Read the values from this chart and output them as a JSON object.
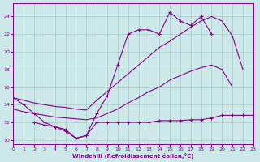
{
  "background_color": "#cce8e8",
  "grid_color": "#aacccc",
  "line_color": "#880088",
  "xlim": [
    0,
    23
  ],
  "ylim": [
    9.5,
    25.5
  ],
  "yticks": [
    10,
    12,
    14,
    16,
    18,
    20,
    22,
    24
  ],
  "xticks": [
    0,
    1,
    2,
    3,
    4,
    5,
    6,
    7,
    8,
    9,
    10,
    11,
    12,
    13,
    14,
    15,
    16,
    17,
    18,
    19,
    20,
    21,
    22,
    23
  ],
  "xlabel": "Windchill (Refroidissement éolien,°C)",
  "series": [
    {
      "name": "jagged_top",
      "x": [
        0,
        1,
        2,
        3,
        4,
        5,
        6,
        7,
        8,
        9,
        10,
        11,
        12,
        13,
        14,
        15,
        16,
        17,
        18,
        19
      ],
      "y": [
        14.8,
        14.0,
        13.0,
        12.0,
        11.5,
        11.0,
        10.2,
        10.5,
        13.0,
        15.0,
        18.5,
        22.0,
        22.5,
        22.5,
        22.0,
        24.5,
        23.5,
        23.0,
        24.0,
        22.0
      ],
      "marker": true
    },
    {
      "name": "upper_diagonal",
      "x": [
        0,
        1,
        2,
        3,
        4,
        5,
        6,
        7,
        8,
        9,
        10,
        11,
        12,
        13,
        14,
        15,
        16,
        17,
        18,
        19,
        20,
        21,
        22,
        23
      ],
      "y": [
        14.8,
        14.5,
        14.2,
        14.0,
        13.8,
        13.7,
        13.5,
        13.4,
        14.5,
        15.5,
        16.5,
        17.5,
        18.5,
        19.5,
        20.5,
        21.2,
        22.0,
        22.8,
        23.5,
        24.0,
        23.5,
        21.8,
        18.0,
        null
      ],
      "marker": false
    },
    {
      "name": "lower_diagonal",
      "x": [
        0,
        1,
        2,
        3,
        4,
        5,
        6,
        7,
        8,
        9,
        10,
        11,
        12,
        13,
        14,
        15,
        16,
        17,
        18,
        19,
        20,
        21,
        22,
        23
      ],
      "y": [
        13.5,
        13.2,
        13.0,
        12.8,
        12.6,
        12.5,
        12.4,
        12.3,
        12.5,
        13.0,
        13.5,
        14.2,
        14.8,
        15.5,
        16.0,
        16.8,
        17.3,
        17.8,
        18.2,
        18.5,
        18.0,
        16.0,
        null,
        null
      ],
      "marker": false
    },
    {
      "name": "flat_bottom",
      "x": [
        2,
        3,
        4,
        5,
        6,
        7,
        8,
        9,
        10,
        11,
        12,
        13,
        14,
        15,
        16,
        17,
        18,
        19,
        20,
        21,
        22,
        23
      ],
      "y": [
        12.0,
        11.7,
        11.5,
        11.2,
        10.2,
        10.5,
        12.0,
        12.0,
        12.0,
        12.0,
        12.0,
        12.0,
        12.2,
        12.2,
        12.2,
        12.3,
        12.3,
        12.5,
        12.8,
        12.8,
        12.8,
        12.8
      ],
      "marker": true
    }
  ]
}
